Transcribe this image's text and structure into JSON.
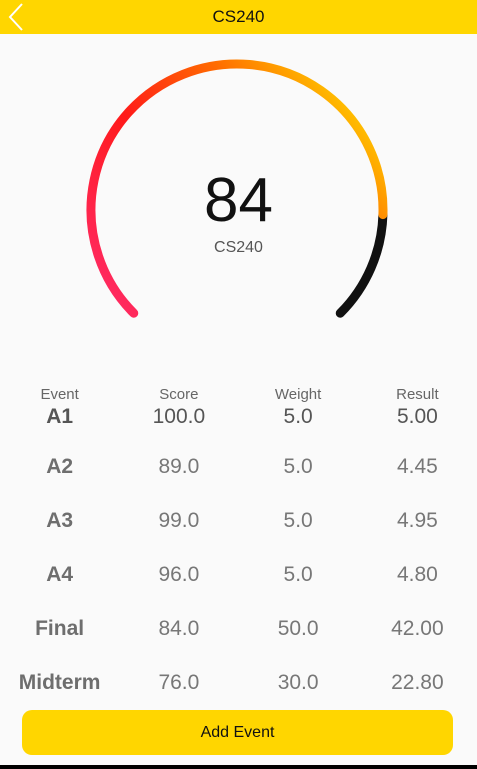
{
  "header": {
    "title": "CS240",
    "back_icon": "chevron-left-icon"
  },
  "gauge": {
    "value": "84",
    "label": "CS240",
    "fill_fraction": 0.84,
    "colors": {
      "start": "#ff2d6e",
      "mid": "#ff1a1a",
      "end": "#ffc400",
      "track": "#111111"
    }
  },
  "table": {
    "headers": {
      "event": "Event",
      "score": "Score",
      "weight": "Weight",
      "result": "Result"
    },
    "rows": [
      {
        "event": "A1",
        "score": "100.0",
        "weight": "5.0",
        "result": "5.00"
      },
      {
        "event": "A2",
        "score": "89.0",
        "weight": "5.0",
        "result": "4.45"
      },
      {
        "event": "A3",
        "score": "99.0",
        "weight": "5.0",
        "result": "4.95"
      },
      {
        "event": "A4",
        "score": "96.0",
        "weight": "5.0",
        "result": "4.80"
      },
      {
        "event": "Final",
        "score": "84.0",
        "weight": "50.0",
        "result": "42.00"
      },
      {
        "event": "Midterm",
        "score": "76.0",
        "weight": "30.0",
        "result": "22.80"
      }
    ]
  },
  "actions": {
    "add_event_label": "Add Event"
  },
  "colors": {
    "accent": "#ffd600",
    "background": "#fafafa"
  }
}
